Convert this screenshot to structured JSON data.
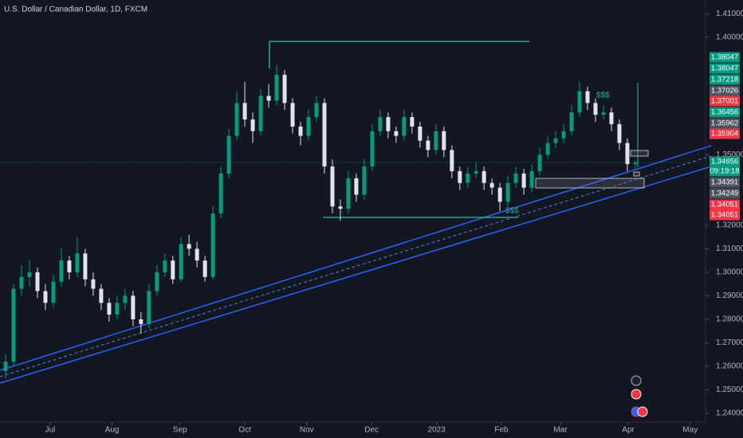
{
  "chart_data": {
    "type": "candlestick",
    "title": "U.S. Dollar / Canadian Dollar, 1D, FXCM",
    "up_color": "#089981",
    "down_color": "#e0e3eb",
    "ylim": [
      1.2363,
      1.4158
    ],
    "yticks": [
      {
        "value": 1.41,
        "label": "1.41000"
      },
      {
        "value": 1.4,
        "label": "1.40000"
      },
      {
        "value": 1.35,
        "label": "1.35000"
      },
      {
        "value": 1.32,
        "label": "1.32000"
      },
      {
        "value": 1.31,
        "label": "1.31000"
      },
      {
        "value": 1.3,
        "label": "1.30000"
      },
      {
        "value": 1.29,
        "label": "1.29000"
      },
      {
        "value": 1.28,
        "label": "1.28000"
      },
      {
        "value": 1.27,
        "label": "1.27000"
      },
      {
        "value": 1.26,
        "label": "1.26000"
      },
      {
        "value": 1.25,
        "label": "1.25000"
      },
      {
        "value": 1.24,
        "label": "1.24000"
      }
    ],
    "xlim": [
      0,
      239.2
    ],
    "xticks": [
      {
        "value": 17,
        "label": "Jul"
      },
      {
        "value": 38,
        "label": "Aug"
      },
      {
        "value": 61,
        "label": "Sep"
      },
      {
        "value": 83,
        "label": "Oct"
      },
      {
        "value": 104,
        "label": "Nov"
      },
      {
        "value": 126,
        "label": "Dec"
      },
      {
        "value": 148,
        "label": "2023"
      },
      {
        "value": 170,
        "label": "Feb"
      },
      {
        "value": 190,
        "label": "Mar"
      },
      {
        "value": 213,
        "label": "Apr"
      },
      {
        "value": 234,
        "label": "May"
      }
    ],
    "x": [
      1.9,
      4.6,
      7.3,
      10.0,
      12.7,
      15.4,
      18.1,
      20.8,
      23.5,
      26.2,
      28.9,
      31.6,
      34.3,
      37.0,
      39.7,
      42.4,
      45.1,
      47.8,
      50.5,
      53.2,
      55.9,
      58.6,
      61.4,
      64.1,
      66.8,
      69.5,
      72.2,
      74.9,
      77.6,
      80.3,
      83.0,
      85.7,
      88.4,
      91.1,
      93.8,
      96.5,
      99.2,
      101.9,
      104.6,
      107.3,
      110.0,
      112.7,
      115.4,
      118.1,
      120.8,
      123.5,
      126.2,
      128.9,
      131.6,
      134.3,
      137.0,
      139.7,
      142.4,
      145.1,
      147.8,
      150.5,
      153.2,
      155.9,
      158.6,
      161.4,
      164.1,
      166.8,
      169.5,
      172.2,
      174.9,
      177.6,
      180.3,
      183.0,
      185.7,
      188.4,
      191.1,
      193.8,
      196.5,
      199.2,
      201.9,
      204.6,
      207.3,
      210.0,
      212.7,
      215.4
    ],
    "ohlc": [
      [
        1.258,
        1.265,
        1.255,
        1.262
      ],
      [
        1.262,
        1.295,
        1.26,
        1.293
      ],
      [
        1.293,
        1.303,
        1.29,
        1.298
      ],
      [
        1.298,
        1.305,
        1.294,
        1.3
      ],
      [
        1.3,
        1.302,
        1.289,
        1.292
      ],
      [
        1.292,
        1.295,
        1.284,
        1.287
      ],
      [
        1.287,
        1.299,
        1.285,
        1.296
      ],
      [
        1.296,
        1.31,
        1.294,
        1.305
      ],
      [
        1.305,
        1.307,
        1.297,
        1.3
      ],
      [
        1.3,
        1.315,
        1.298,
        1.308
      ],
      [
        1.308,
        1.31,
        1.294,
        1.297
      ],
      [
        1.297,
        1.3,
        1.29,
        1.293
      ],
      [
        1.293,
        1.295,
        1.284,
        1.287
      ],
      [
        1.287,
        1.289,
        1.279,
        1.282
      ],
      [
        1.282,
        1.29,
        1.28,
        1.287
      ],
      [
        1.287,
        1.293,
        1.284,
        1.29
      ],
      [
        1.29,
        1.292,
        1.277,
        1.28
      ],
      [
        1.28,
        1.283,
        1.274,
        1.278
      ],
      [
        1.278,
        1.295,
        1.276,
        1.292
      ],
      [
        1.292,
        1.303,
        1.29,
        1.3
      ],
      [
        1.3,
        1.308,
        1.298,
        1.305
      ],
      [
        1.305,
        1.307,
        1.295,
        1.297
      ],
      [
        1.297,
        1.315,
        1.296,
        1.312
      ],
      [
        1.312,
        1.316,
        1.307,
        1.31
      ],
      [
        1.31,
        1.313,
        1.302,
        1.305
      ],
      [
        1.305,
        1.307,
        1.296,
        1.298
      ],
      [
        1.298,
        1.328,
        1.297,
        1.325
      ],
      [
        1.325,
        1.345,
        1.323,
        1.342
      ],
      [
        1.342,
        1.361,
        1.34,
        1.358
      ],
      [
        1.358,
        1.377,
        1.356,
        1.372
      ],
      [
        1.372,
        1.381,
        1.362,
        1.365
      ],
      [
        1.365,
        1.368,
        1.355,
        1.36
      ],
      [
        1.36,
        1.378,
        1.358,
        1.375
      ],
      [
        1.375,
        1.38,
        1.37,
        1.373
      ],
      [
        1.373,
        1.388,
        1.371,
        1.384
      ],
      [
        1.384,
        1.386,
        1.369,
        1.372
      ],
      [
        1.372,
        1.374,
        1.359,
        1.362
      ],
      [
        1.362,
        1.364,
        1.354,
        1.358
      ],
      [
        1.358,
        1.369,
        1.356,
        1.366
      ],
      [
        1.366,
        1.375,
        1.364,
        1.372
      ],
      [
        1.372,
        1.374,
        1.342,
        1.345
      ],
      [
        1.345,
        1.348,
        1.325,
        1.328
      ],
      [
        1.328,
        1.331,
        1.322,
        1.327
      ],
      [
        1.327,
        1.343,
        1.325,
        1.34
      ],
      [
        1.34,
        1.342,
        1.33,
        1.333
      ],
      [
        1.333,
        1.348,
        1.331,
        1.345
      ],
      [
        1.345,
        1.363,
        1.343,
        1.36
      ],
      [
        1.36,
        1.369,
        1.358,
        1.366
      ],
      [
        1.366,
        1.368,
        1.357,
        1.36
      ],
      [
        1.36,
        1.362,
        1.355,
        1.358
      ],
      [
        1.358,
        1.369,
        1.356,
        1.366
      ],
      [
        1.366,
        1.368,
        1.359,
        1.362
      ],
      [
        1.362,
        1.364,
        1.353,
        1.356
      ],
      [
        1.356,
        1.358,
        1.349,
        1.352
      ],
      [
        1.352,
        1.363,
        1.35,
        1.36
      ],
      [
        1.36,
        1.362,
        1.349,
        1.352
      ],
      [
        1.352,
        1.354,
        1.34,
        1.343
      ],
      [
        1.343,
        1.345,
        1.335,
        1.338
      ],
      [
        1.338,
        1.345,
        1.336,
        1.342
      ],
      [
        1.342,
        1.347,
        1.34,
        1.343
      ],
      [
        1.343,
        1.345,
        1.335,
        1.338
      ],
      [
        1.338,
        1.34,
        1.333,
        1.336
      ],
      [
        1.336,
        1.338,
        1.326,
        1.33
      ],
      [
        1.33,
        1.341,
        1.328,
        1.338
      ],
      [
        1.338,
        1.345,
        1.336,
        1.342
      ],
      [
        1.342,
        1.344,
        1.333,
        1.336
      ],
      [
        1.336,
        1.346,
        1.334,
        1.343
      ],
      [
        1.343,
        1.353,
        1.341,
        1.35
      ],
      [
        1.35,
        1.358,
        1.348,
        1.355
      ],
      [
        1.355,
        1.36,
        1.353,
        1.357
      ],
      [
        1.357,
        1.363,
        1.355,
        1.36
      ],
      [
        1.36,
        1.371,
        1.358,
        1.368
      ],
      [
        1.368,
        1.381,
        1.366,
        1.377
      ],
      [
        1.377,
        1.379,
        1.369,
        1.372
      ],
      [
        1.372,
        1.374,
        1.364,
        1.367
      ],
      [
        1.367,
        1.371,
        1.365,
        1.368
      ],
      [
        1.368,
        1.37,
        1.36,
        1.363
      ],
      [
        1.363,
        1.365,
        1.352,
        1.355
      ],
      [
        1.355,
        1.357,
        1.343,
        1.346
      ],
      [
        1.346,
        1.3475,
        1.344,
        1.34656
      ]
    ],
    "price_labels": [
      {
        "value": 1.38047,
        "color": "#089981"
      },
      {
        "value": 1.38047,
        "color": "#089981"
      },
      {
        "value": 1.37218,
        "color": "#089981"
      },
      {
        "value": 1.37026,
        "color": "#50535e"
      },
      {
        "value": 1.37001,
        "color": "#f23645"
      },
      {
        "value": 1.36456,
        "color": "#089981"
      },
      {
        "value": 1.35962,
        "color": "#50535e"
      },
      {
        "value": 1.35904,
        "color": "#f23645"
      },
      {
        "value": 1.34656,
        "color": "#089981"
      },
      {
        "value": 1.34391,
        "color": "#50535e"
      },
      {
        "value": 1.34249,
        "color": "#50535e"
      },
      {
        "value": 1.34051,
        "color": "#f23645"
      },
      {
        "value": 1.34051,
        "color": "#f23645"
      }
    ],
    "countdown": "09:19:18",
    "annotations": [
      "$$$",
      "$$$"
    ]
  }
}
